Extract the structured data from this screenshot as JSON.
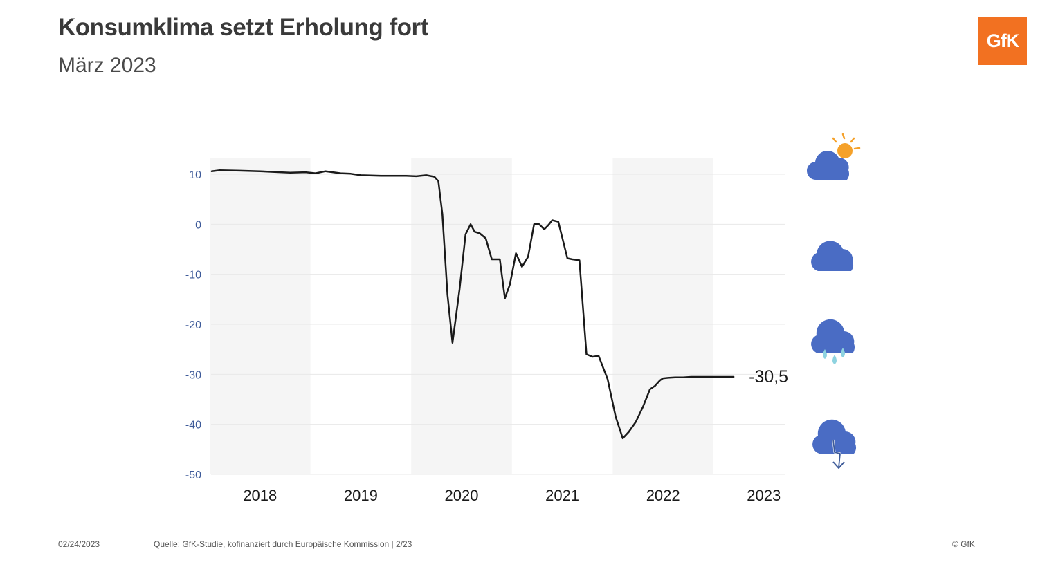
{
  "header": {
    "title": "Konsumklima setzt Erholung fort",
    "subtitle": "März 2023"
  },
  "logo": {
    "text": "GfK",
    "color": "#f27121"
  },
  "footer": {
    "date": "02/24/2023",
    "source": "Quelle: GfK-Studie, kofinanziert durch Europäische Kommission | 2/23",
    "copyright": "© GfK"
  },
  "icons": [
    {
      "name": "sun-cloud-icon"
    },
    {
      "name": "cloud-icon"
    },
    {
      "name": "rain-cloud-icon"
    },
    {
      "name": "storm-cloud-icon"
    }
  ],
  "colors": {
    "line": "#1a1a1a",
    "tick_label": "#3d5a99",
    "band": "#f5f5f5",
    "cloud": "#4a6cc4",
    "sun": "#f5a12a",
    "rain": "#8ed3e0"
  },
  "chart_data": {
    "type": "line",
    "title": "",
    "xlabel": "",
    "ylabel": "",
    "ylim": [
      -50,
      10
    ],
    "yticks": [
      10,
      0,
      -10,
      -20,
      -30,
      -40,
      -50
    ],
    "ytick_labels": [
      "10",
      "0",
      "-10",
      "-20",
      "-30",
      "-40",
      "-50"
    ],
    "xlim": [
      2017.5,
      2023.4
    ],
    "categories": [
      "2018",
      "2019",
      "2020",
      "2021",
      "2022",
      "2023"
    ],
    "shaded_years": [
      "2018",
      "2020",
      "2022"
    ],
    "grid": true,
    "end_label": "-30,5",
    "series": [
      {
        "x": [
          2017.52,
          2017.6,
          2017.8,
          2018.0,
          2018.2,
          2018.3,
          2018.45,
          2018.55,
          2018.65,
          2018.8,
          2018.9,
          2019.0,
          2019.2,
          2019.3,
          2019.45,
          2019.55,
          2019.65,
          2019.73,
          2019.77,
          2019.81,
          2019.86,
          2019.91,
          2019.98,
          2020.04,
          2020.09,
          2020.13,
          2020.18,
          2020.24,
          2020.3,
          2020.38,
          2020.43,
          2020.48,
          2020.54,
          2020.6,
          2020.66,
          2020.72,
          2020.77,
          2020.82,
          2020.86,
          2020.9,
          2020.96,
          2021.05,
          2021.1,
          2021.17,
          2021.24,
          2021.3,
          2021.36,
          2021.45,
          2021.53,
          2021.6,
          2021.66,
          2021.73,
          2021.8,
          2021.87,
          2021.92,
          2021.97,
          2022.0,
          2022.05,
          2022.12,
          2022.2,
          2022.28,
          2022.32,
          2022.38,
          2022.45,
          2022.5,
          2022.58,
          2022.65,
          2022.7
        ],
        "y": [
          10.6,
          10.8,
          10.7,
          10.6,
          10.4,
          10.3,
          10.4,
          10.2,
          10.6,
          10.2,
          10.1,
          9.8,
          9.7,
          9.7,
          9.7,
          9.6,
          9.8,
          9.5,
          8.6,
          2.0,
          -14.0,
          -23.7,
          -13.0,
          -2.0,
          0.0,
          -1.5,
          -1.8,
          -2.8,
          -7.0,
          -7.0,
          -14.8,
          -12.0,
          -5.8,
          -8.5,
          -6.5,
          0.0,
          0.0,
          -1.0,
          -0.2,
          0.8,
          0.5,
          -6.8,
          -7.0,
          -7.2,
          -26.0,
          -26.5,
          -26.3,
          -31.0,
          -38.5,
          -42.8,
          -41.5,
          -39.5,
          -36.5,
          -33.0,
          -32.3,
          -31.2,
          -30.8,
          -30.7,
          -30.6,
          -30.6,
          -30.5,
          -30.5,
          -30.5,
          -30.5,
          -30.5,
          -30.5,
          -30.5,
          -30.5
        ]
      }
    ]
  }
}
